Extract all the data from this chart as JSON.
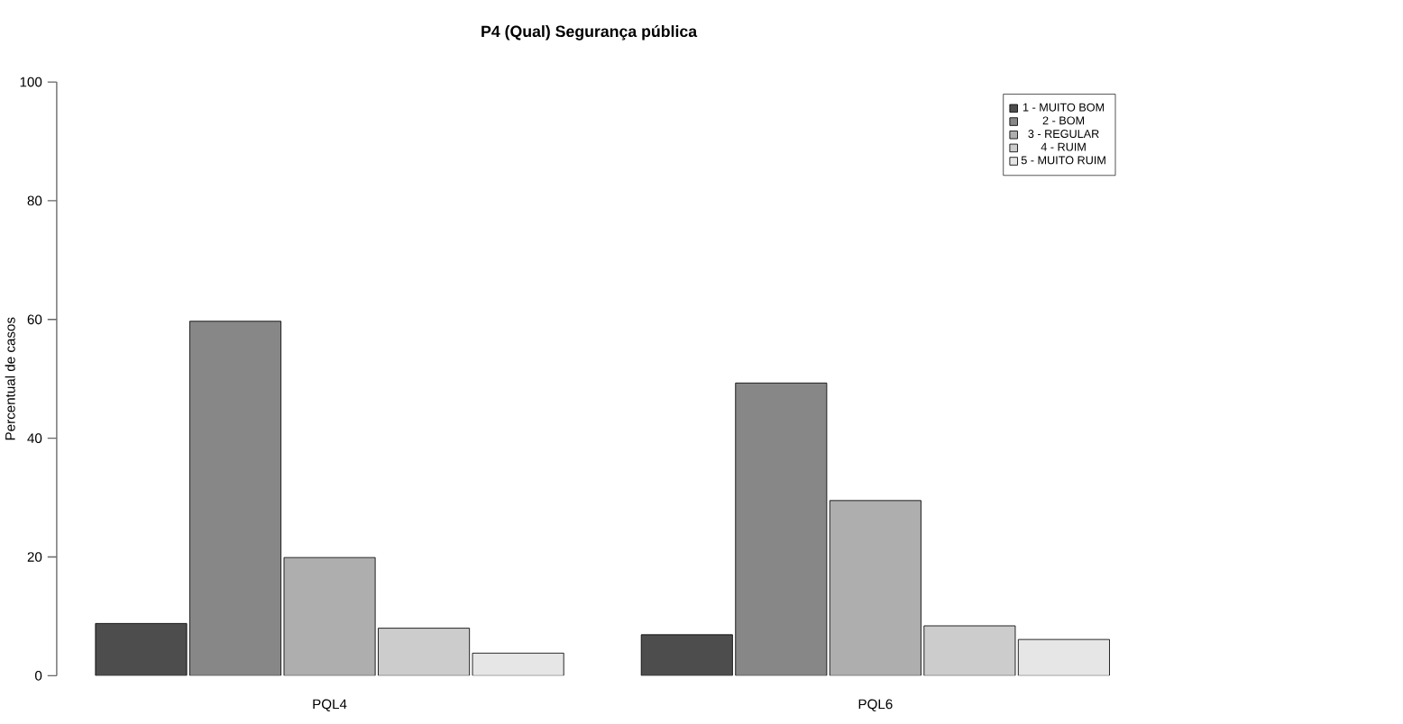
{
  "chart_data": {
    "type": "bar",
    "title": "P4 (Qual) Segurança pública",
    "ylabel": "Percentual de casos",
    "categories": [
      "PQL4",
      "PQL6"
    ],
    "series": [
      {
        "name": "1 - MUITO BOM",
        "color": "#4d4d4d",
        "values": [
          8.8,
          6.9
        ]
      },
      {
        "name": "2 - BOM",
        "color": "#878787",
        "values": [
          59.7,
          49.3
        ]
      },
      {
        "name": "3 - REGULAR",
        "color": "#aeaeae",
        "values": [
          19.9,
          29.5
        ]
      },
      {
        "name": "4 - RUIM",
        "color": "#cccccc",
        "values": [
          8.0,
          8.4
        ]
      },
      {
        "name": "5 - MUITO RUIM",
        "color": "#e6e6e6",
        "values": [
          3.8,
          6.1
        ]
      }
    ],
    "ylim": [
      0,
      100
    ],
    "yticks": [
      0,
      20,
      40,
      60,
      80,
      100
    ],
    "legend": "top right"
  }
}
